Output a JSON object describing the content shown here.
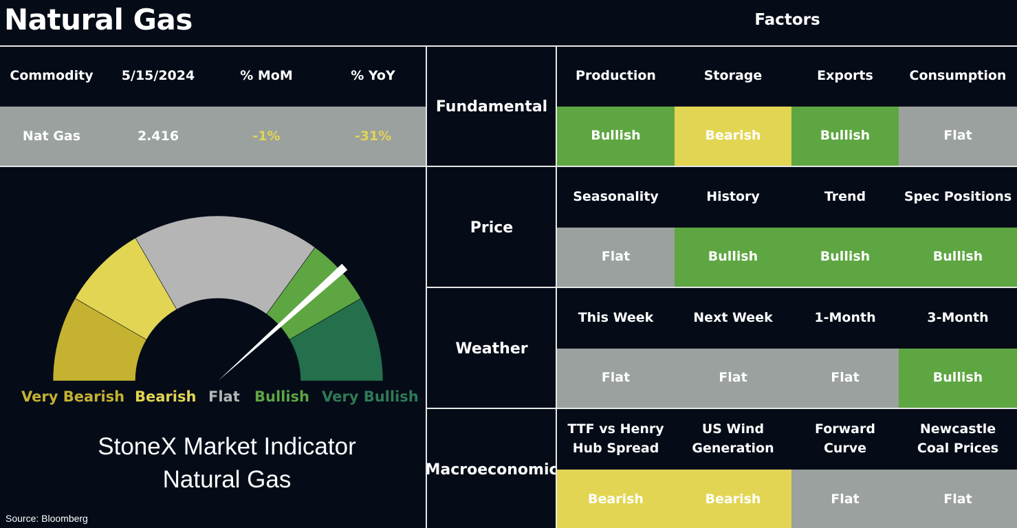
{
  "header": {
    "title": "Natural Gas",
    "factors_title": "Factors"
  },
  "commodity_table": {
    "headers": [
      "Commodity",
      "5/15/2024",
      "% MoM",
      "% YoY"
    ],
    "row": {
      "commodity": "Nat Gas",
      "price": "2.416",
      "mom": "-1%",
      "yoy": "-31%"
    }
  },
  "gauge": {
    "legend": [
      "Very Bearish",
      "Bearish",
      "Flat",
      "Bullish",
      "Very Bullish"
    ],
    "caption_line1": "StoneX Market Indicator",
    "caption_line2": "Natural Gas",
    "colors": {
      "very_bearish": "#c5b230",
      "bearish": "#e2d553",
      "flat": "#b5b5b5",
      "bullish": "#5ea642",
      "very_bullish": "#246f4c",
      "needle": "#ffffff"
    }
  },
  "source": "Source: Bloomberg",
  "factor_colors": {
    "Bullish": "#5ea642",
    "Bearish": "#e2d553",
    "Flat": "#9ba19e"
  },
  "factors": [
    {
      "category": "Fundamental",
      "items": [
        {
          "name": "Production",
          "value": "Bullish"
        },
        {
          "name": "Storage",
          "value": "Bearish"
        },
        {
          "name": "Exports",
          "value": "Bullish"
        },
        {
          "name": "Consumption",
          "value": "Flat"
        }
      ]
    },
    {
      "category": "Price",
      "items": [
        {
          "name": "Seasonality",
          "value": "Flat"
        },
        {
          "name": "History",
          "value": "Bullish"
        },
        {
          "name": "Trend",
          "value": "Bullish"
        },
        {
          "name": "Spec Positions",
          "value": "Bullish"
        }
      ]
    },
    {
      "category": "Weather",
      "items": [
        {
          "name": "This Week",
          "value": "Flat"
        },
        {
          "name": "Next Week",
          "value": "Flat"
        },
        {
          "name": "1-Month",
          "value": "Flat"
        },
        {
          "name": "3-Month",
          "value": "Bullish"
        }
      ]
    },
    {
      "category": "Macroeconomic",
      "items": [
        {
          "name": "TTF vs Henry Hub Spread",
          "value": "Bearish"
        },
        {
          "name": "US Wind Generation",
          "value": "Bearish"
        },
        {
          "name": "Forward Curve",
          "value": "Flat"
        },
        {
          "name": "Newcastle Coal Prices",
          "value": "Flat"
        }
      ]
    }
  ],
  "chart_data": {
    "type": "gauge",
    "scale": [
      "Very Bearish",
      "Bearish",
      "Flat",
      "Bullish",
      "Very Bullish"
    ],
    "indicator_value": "Bullish",
    "title": "StoneX Market Indicator Natural Gas"
  }
}
